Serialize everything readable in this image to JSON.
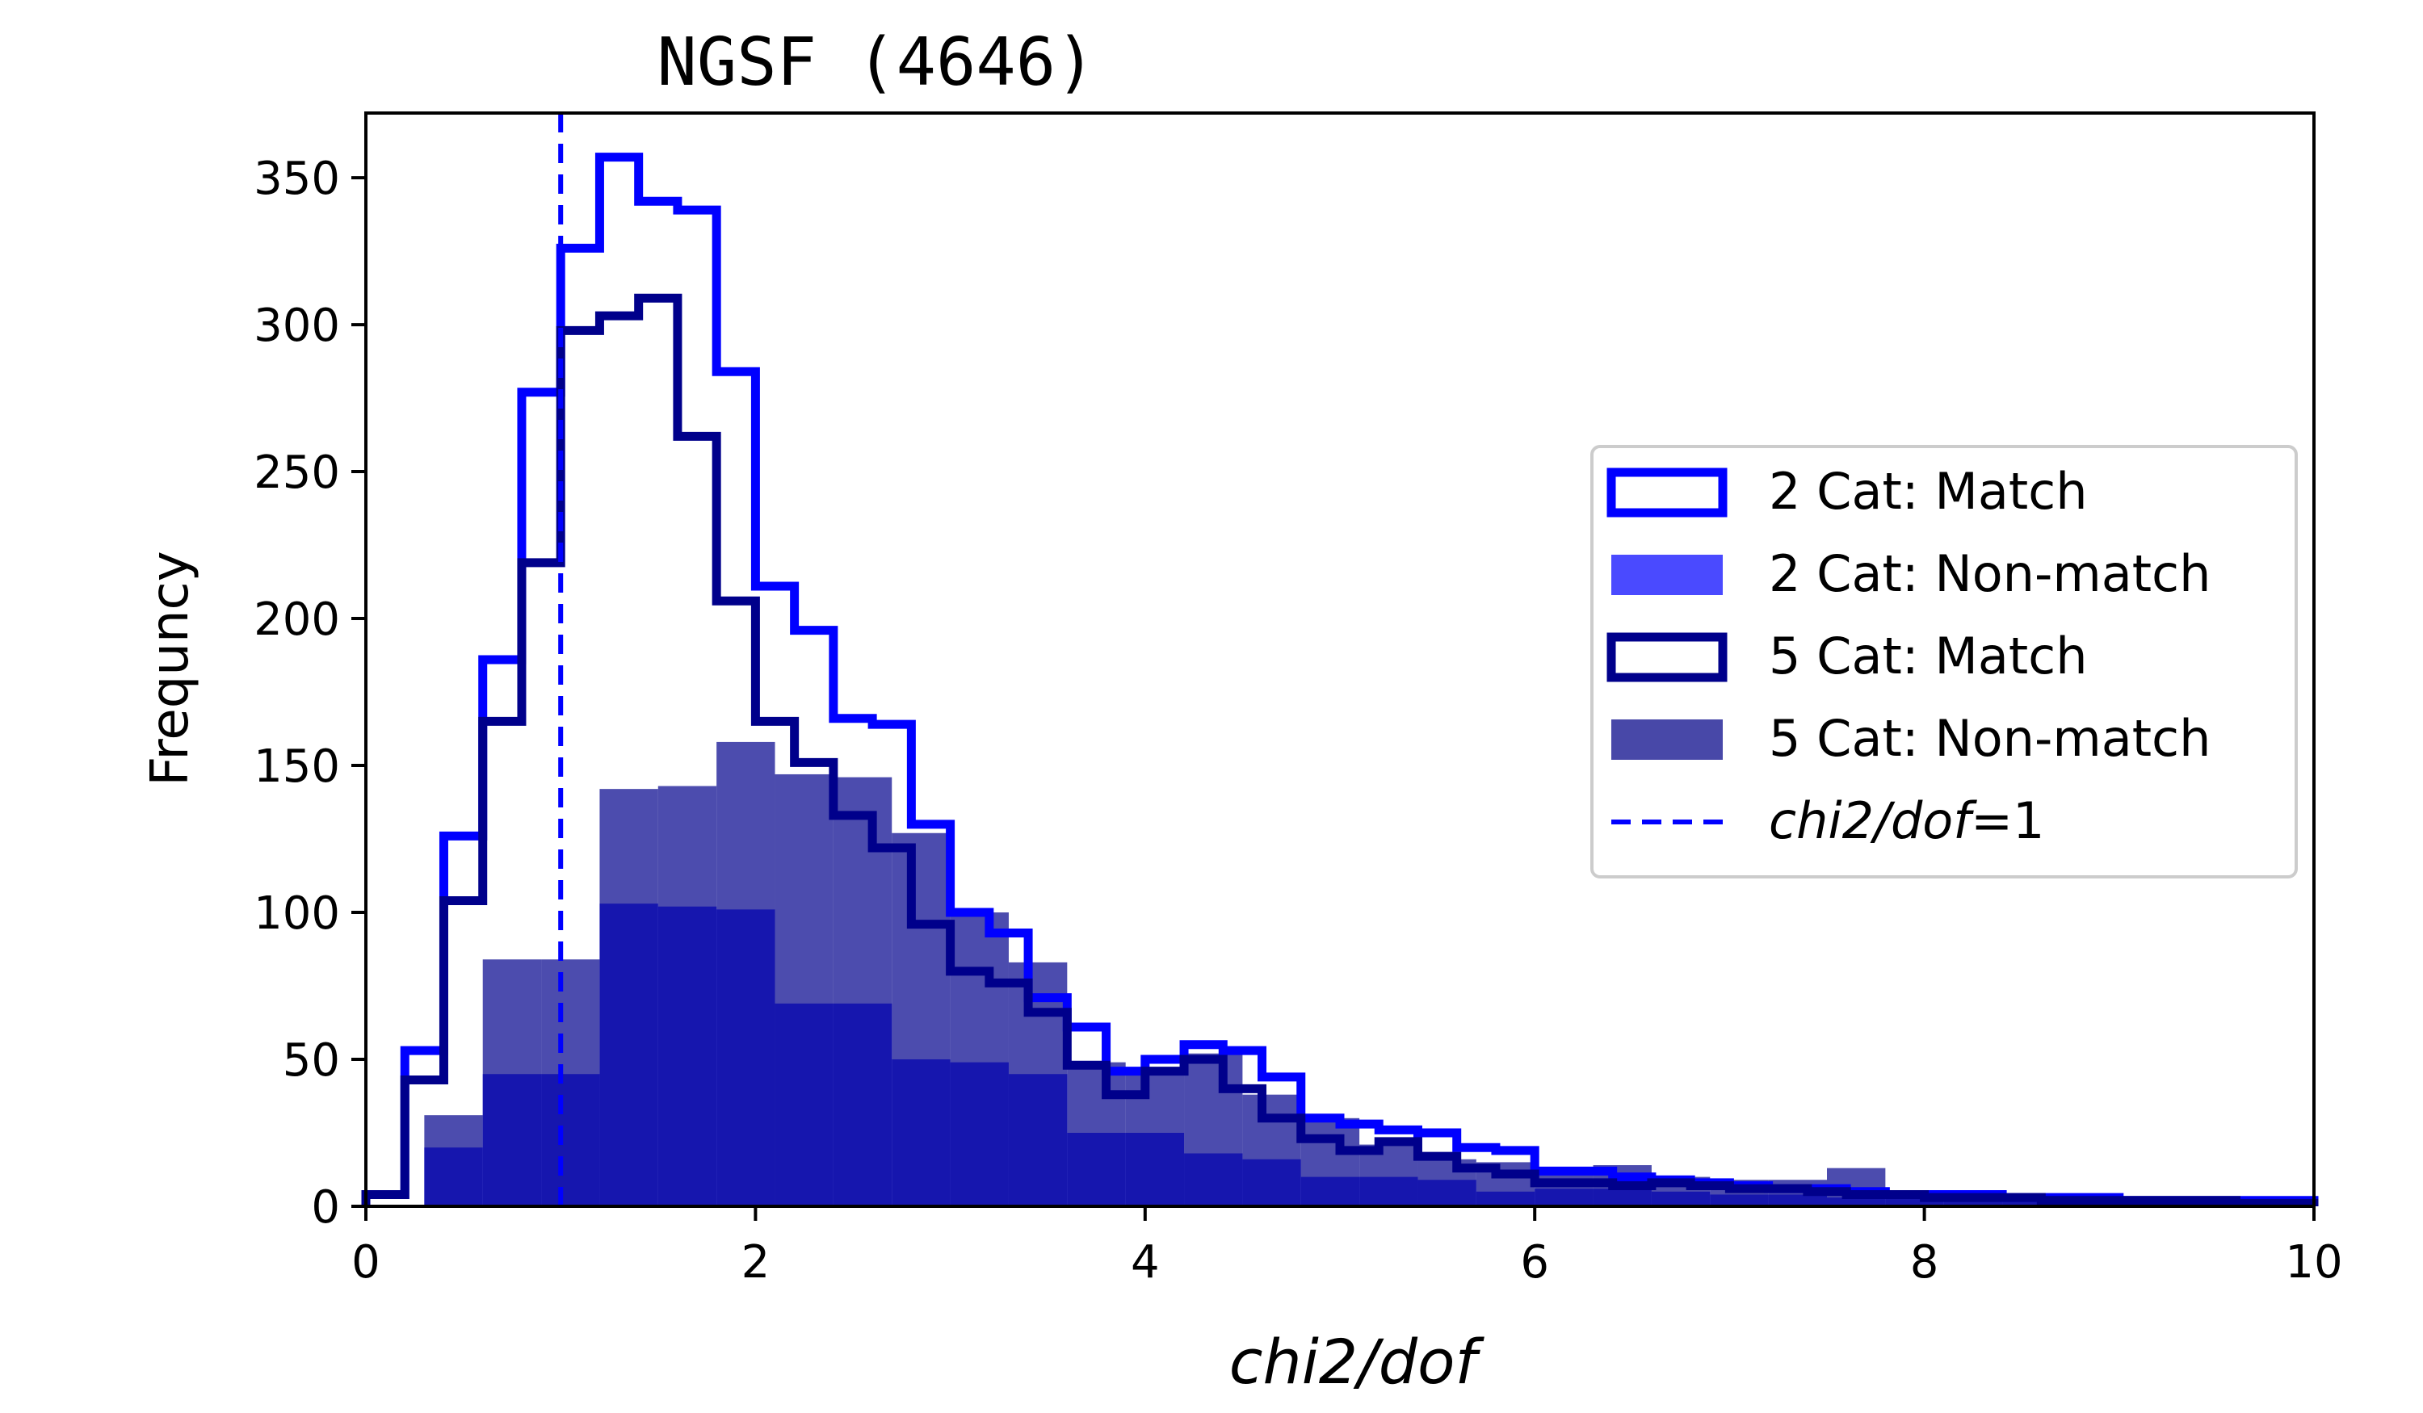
{
  "chart_data": {
    "type": "histogram",
    "title": "NGSF (4646)",
    "xlabel": "chi2/dof",
    "ylabel": "Frequncy",
    "xlim": [
      0,
      10
    ],
    "ylim": [
      0,
      372
    ],
    "xticks": [
      0,
      2,
      4,
      6,
      8,
      10
    ],
    "xtick_labels": [
      "0",
      "2",
      "4",
      "6",
      "8",
      "10"
    ],
    "yticks": [
      0,
      50,
      100,
      150,
      200,
      250,
      300,
      350
    ],
    "ytick_labels": [
      "0",
      "50",
      "100",
      "150",
      "200",
      "250",
      "300",
      "350"
    ],
    "legend_position": "center-right",
    "reference_line": {
      "x": 1,
      "label_italic": "chi2/dof",
      "label_suffix": "=1",
      "color": "#0000ff"
    },
    "series": [
      {
        "name": "2 Cat: Match",
        "style": "step",
        "color": "#0000ff",
        "bin_width": 0.2,
        "x_start": 0,
        "values": [
          4,
          53,
          126,
          186,
          277,
          326,
          357,
          342,
          339,
          284,
          211,
          196,
          166,
          164,
          130,
          100,
          93,
          71,
          61,
          46,
          50,
          55,
          53,
          44,
          30,
          28,
          26,
          25,
          20,
          19,
          12,
          12,
          10,
          9,
          8,
          7,
          6,
          6,
          5,
          4,
          4,
          4,
          3,
          3,
          3,
          2,
          2,
          2,
          2,
          2
        ]
      },
      {
        "name": "5 Cat: Match",
        "style": "step",
        "color": "#00008b",
        "bin_width": 0.2,
        "x_start": 0,
        "values": [
          4,
          43,
          104,
          165,
          219,
          298,
          303,
          309,
          262,
          206,
          165,
          151,
          133,
          122,
          96,
          80,
          76,
          66,
          48,
          38,
          46,
          50,
          40,
          30,
          23,
          19,
          22,
          17,
          13,
          11,
          8,
          8,
          7,
          8,
          7,
          6,
          6,
          5,
          4,
          4,
          3,
          3,
          3,
          2,
          2,
          2,
          2,
          2,
          1,
          1
        ]
      },
      {
        "name": "2 Cat: Non-match",
        "style": "filled",
        "color": "#0000ff",
        "alpha": 0.7,
        "bin_width": 0.3,
        "x_start": 0.3,
        "values": [
          20,
          45,
          45,
          103,
          102,
          101,
          69,
          69,
          50,
          49,
          45,
          25,
          25,
          18,
          16,
          10,
          10,
          9,
          5,
          6,
          6,
          5,
          4,
          4,
          3,
          3,
          3,
          2,
          2,
          2,
          2,
          1
        ]
      },
      {
        "name": "5 Cat: Non-match",
        "style": "filled",
        "color": "#00008b",
        "alpha": 0.7,
        "bin_width": 0.3,
        "x_start": 0.3,
        "values": [
          31,
          84,
          84,
          142,
          143,
          158,
          147,
          146,
          127,
          100,
          83,
          49,
          46,
          52,
          38,
          30,
          21,
          16,
          15,
          12,
          14,
          10,
          9,
          9,
          13,
          5,
          4,
          4,
          3,
          3,
          2,
          2
        ]
      }
    ]
  },
  "legend": [
    {
      "label": "2 Cat: Match",
      "swatch": "outline",
      "color": "#0000ff"
    },
    {
      "label": "2 Cat: Non-match",
      "swatch": "fill",
      "color": "#4a4aff"
    },
    {
      "label": "5 Cat: Match",
      "swatch": "outline",
      "color": "#00008b"
    },
    {
      "label": "5 Cat: Non-match",
      "swatch": "fill",
      "color": "#4848a8"
    },
    {
      "label_italic": "chi2/dof",
      "label_suffix": "=1",
      "swatch": "dashed",
      "color": "#0000ff"
    }
  ]
}
